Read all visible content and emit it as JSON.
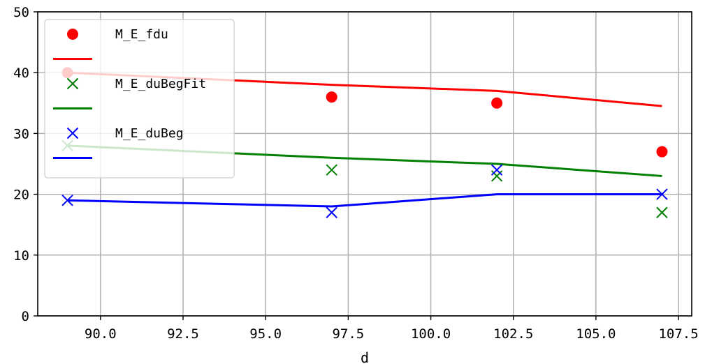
{
  "chart_data": {
    "type": "line",
    "title": "",
    "xlabel": "d",
    "ylabel": "",
    "xlim": [
      88.1,
      107.9
    ],
    "ylim": [
      0,
      50
    ],
    "xticks": [
      90.0,
      92.5,
      95.0,
      97.5,
      100.0,
      102.5,
      105.0,
      107.5
    ],
    "xtick_labels": [
      "90.0",
      "92.5",
      "95.0",
      "97.5",
      "100.0",
      "102.5",
      "105.0",
      "107.5"
    ],
    "yticks": [
      0,
      10,
      20,
      30,
      40,
      50
    ],
    "ytick_labels": [
      "0",
      "10",
      "20",
      "30",
      "40",
      "50"
    ],
    "grid": true,
    "legend_position": "top-left",
    "x": [
      89,
      97,
      102,
      107
    ],
    "series": [
      {
        "name": "M_E_fdu",
        "kind": "scatter",
        "marker": "circle",
        "color": "#ff0000",
        "values": [
          40,
          36,
          35,
          27
        ]
      },
      {
        "name": "",
        "kind": "line",
        "color": "#ff0000",
        "values": [
          40,
          38,
          37,
          34.5
        ]
      },
      {
        "name": "M_E_duBegFit",
        "kind": "scatter",
        "marker": "x",
        "color": "#008000",
        "values": [
          28,
          24,
          23,
          17
        ]
      },
      {
        "name": "",
        "kind": "line",
        "color": "#008000",
        "values": [
          28,
          26,
          25,
          23
        ]
      },
      {
        "name": "M_E_duBeg",
        "kind": "scatter",
        "marker": "x",
        "color": "#0000ff",
        "values": [
          19,
          17,
          24,
          20
        ]
      },
      {
        "name": "",
        "kind": "line",
        "color": "#0000ff",
        "values": [
          19,
          18,
          20,
          20
        ]
      }
    ]
  }
}
